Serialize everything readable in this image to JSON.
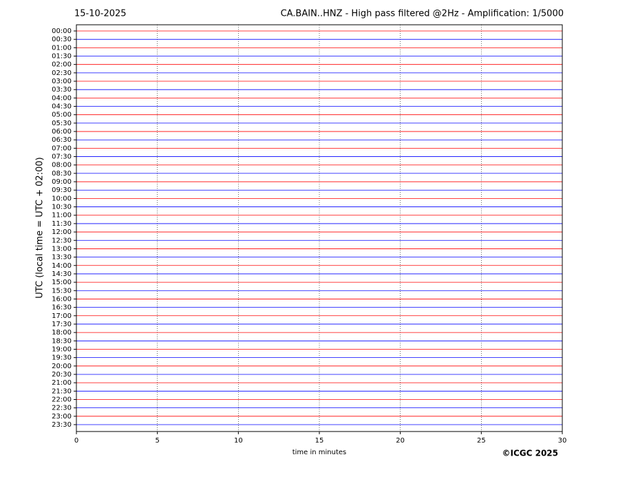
{
  "chart_data": {
    "type": "helicorder",
    "date": "15-10-2025",
    "title": "CA.BAIN..HNZ - High pass filtered @2Hz - Amplification: 1/5000",
    "ylabel": "UTC (local time = UTC + 02:00)",
    "xlabel": "time in minutes",
    "copyright": "©ICGC 2025",
    "xlim": [
      0,
      30
    ],
    "xticks": [
      0,
      5,
      10,
      15,
      20,
      25,
      30
    ],
    "grid": true,
    "series": [
      {
        "name": "00:00",
        "color": "#ff0000"
      },
      {
        "name": "00:30",
        "color": "#0000ff"
      },
      {
        "name": "01:00",
        "color": "#ff0000"
      },
      {
        "name": "01:30",
        "color": "#0000ff"
      },
      {
        "name": "02:00",
        "color": "#ff0000"
      },
      {
        "name": "02:30",
        "color": "#0000ff"
      },
      {
        "name": "03:00",
        "color": "#ff0000"
      },
      {
        "name": "03:30",
        "color": "#0000ff"
      },
      {
        "name": "04:00",
        "color": "#ff0000"
      },
      {
        "name": "04:30",
        "color": "#0000ff"
      },
      {
        "name": "05:00",
        "color": "#ff0000"
      },
      {
        "name": "05:30",
        "color": "#0000ff"
      },
      {
        "name": "06:00",
        "color": "#ff0000"
      },
      {
        "name": "06:30",
        "color": "#0000ff"
      },
      {
        "name": "07:00",
        "color": "#ff0000"
      },
      {
        "name": "07:30",
        "color": "#0000ff"
      },
      {
        "name": "08:00",
        "color": "#ff0000"
      },
      {
        "name": "08:30",
        "color": "#0000ff"
      },
      {
        "name": "09:00",
        "color": "#ff0000"
      },
      {
        "name": "09:30",
        "color": "#0000ff"
      },
      {
        "name": "10:00",
        "color": "#ff0000"
      },
      {
        "name": "10:30",
        "color": "#0000ff"
      },
      {
        "name": "11:00",
        "color": "#ff0000"
      },
      {
        "name": "11:30",
        "color": "#0000ff"
      },
      {
        "name": "12:00",
        "color": "#ff0000"
      },
      {
        "name": "12:30",
        "color": "#0000ff"
      },
      {
        "name": "13:00",
        "color": "#ff0000"
      },
      {
        "name": "13:30",
        "color": "#0000ff"
      },
      {
        "name": "14:00",
        "color": "#ff0000"
      },
      {
        "name": "14:30",
        "color": "#0000ff"
      },
      {
        "name": "15:00",
        "color": "#ff0000"
      },
      {
        "name": "15:30",
        "color": "#0000ff"
      },
      {
        "name": "16:00",
        "color": "#ff0000"
      },
      {
        "name": "16:30",
        "color": "#0000ff"
      },
      {
        "name": "17:00",
        "color": "#ff0000"
      },
      {
        "name": "17:30",
        "color": "#0000ff"
      },
      {
        "name": "18:00",
        "color": "#ff0000"
      },
      {
        "name": "18:30",
        "color": "#0000ff"
      },
      {
        "name": "19:00",
        "color": "#ff0000"
      },
      {
        "name": "19:30",
        "color": "#0000ff"
      },
      {
        "name": "20:00",
        "color": "#ff0000"
      },
      {
        "name": "20:30",
        "color": "#0000ff"
      },
      {
        "name": "21:00",
        "color": "#ff0000"
      },
      {
        "name": "21:30",
        "color": "#0000ff"
      },
      {
        "name": "22:00",
        "color": "#ff0000"
      },
      {
        "name": "22:30",
        "color": "#0000ff"
      },
      {
        "name": "23:00",
        "color": "#ff0000"
      },
      {
        "name": "23:30",
        "color": "#0000ff"
      }
    ]
  }
}
